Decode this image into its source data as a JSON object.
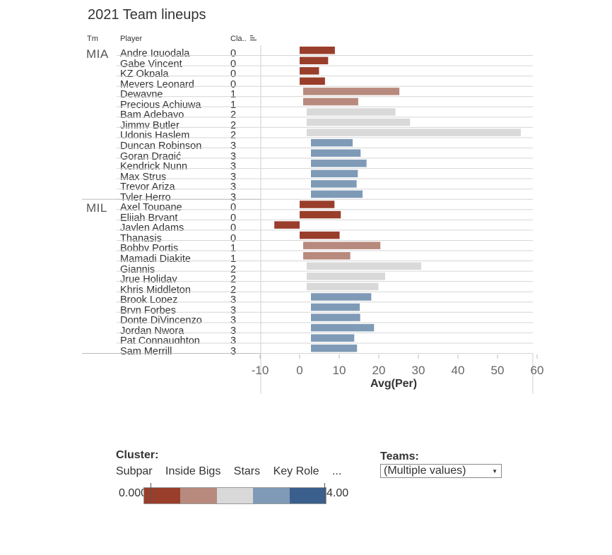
{
  "chart_data": {
    "type": "bar",
    "orientation": "horizontal",
    "title": "2021 Team lineups",
    "columns": [
      "Tm",
      "Player",
      "Cla.."
    ],
    "xlabel": "Avg(Per)",
    "xlim": [
      -10,
      60
    ],
    "xticks": [
      -10,
      0,
      10,
      20,
      30,
      40,
      50,
      60
    ],
    "teams": [
      {
        "team": "MIA",
        "rows": [
          {
            "player": "Andre Iguodala",
            "cluster": 0,
            "value": 8.9
          },
          {
            "player": "Gabe Vincent",
            "cluster": 0,
            "value": 7.2
          },
          {
            "player": "KZ Okpala",
            "cluster": 0,
            "value": 4.9
          },
          {
            "player": "Meyers Leonard",
            "cluster": 0,
            "value": 6.4
          },
          {
            "player": "Dewayne",
            "cluster": 1,
            "value": 25.2
          },
          {
            "player": "Precious Achiuwa",
            "cluster": 1,
            "value": 14.8
          },
          {
            "player": "Bam Adebayo",
            "cluster": 2,
            "value": 24.2
          },
          {
            "player": "Jimmy Butler",
            "cluster": 2,
            "value": 27.9
          },
          {
            "player": "Udonis Haslem",
            "cluster": 2,
            "value": 55.9
          },
          {
            "player": "Duncan Robinson",
            "cluster": 3,
            "value": 13.4
          },
          {
            "player": "Goran Dragić",
            "cluster": 3,
            "value": 15.4
          },
          {
            "player": "Kendrick Nunn",
            "cluster": 3,
            "value": 16.9
          },
          {
            "player": "Max Strus",
            "cluster": 3,
            "value": 14.7
          },
          {
            "player": "Trevor Ariza",
            "cluster": 3,
            "value": 14.4
          },
          {
            "player": "Tyler Herro",
            "cluster": 3,
            "value": 15.9
          }
        ]
      },
      {
        "team": "MIL",
        "rows": [
          {
            "player": "Axel Toupane",
            "cluster": 0,
            "value": 8.8
          },
          {
            "player": "Elijah Bryant",
            "cluster": 0,
            "value": 10.4
          },
          {
            "player": "Jaylen Adams",
            "cluster": 0,
            "value": -6.4
          },
          {
            "player": "Thanasis",
            "cluster": 0,
            "value": 10.1
          },
          {
            "player": "Bobby Portis",
            "cluster": 1,
            "value": 20.4
          },
          {
            "player": "Mamadi Diakite",
            "cluster": 1,
            "value": 12.8
          },
          {
            "player": "Giannis",
            "cluster": 2,
            "value": 30.7
          },
          {
            "player": "Jrue Holiday",
            "cluster": 2,
            "value": 21.6
          },
          {
            "player": "Khris Middleton",
            "cluster": 2,
            "value": 19.9
          },
          {
            "player": "Brook Lopez",
            "cluster": 3,
            "value": 18.1
          },
          {
            "player": "Bryn Forbes",
            "cluster": 3,
            "value": 15.2
          },
          {
            "player": "Donte DiVincenzo",
            "cluster": 3,
            "value": 15.3
          },
          {
            "player": "Jordan Nwora",
            "cluster": 3,
            "value": 18.8
          },
          {
            "player": "Pat Connaughton",
            "cluster": 3,
            "value": 13.8
          },
          {
            "player": "Sam Merrill",
            "cluster": 3,
            "value": 14.5
          }
        ]
      }
    ],
    "legend": {
      "title": "Cluster:",
      "labels": [
        "Subpar",
        "Inside Bigs",
        "Stars",
        "Key Role",
        "..."
      ],
      "min_label": "0.000",
      "max_label": "4.00",
      "colors": [
        "#9a3e2c",
        "#b88a7e",
        "#d9d9d9",
        "#7e9ab7",
        "#3b5f8c"
      ]
    },
    "filter": {
      "title": "Teams:",
      "value": "(Multiple values)"
    },
    "sort_icon": "sort-descending-icon"
  },
  "cluster_colors": [
    "#9a3e2c",
    "#b88a7e",
    "#d9d9d9",
    "#7e9ab7"
  ]
}
